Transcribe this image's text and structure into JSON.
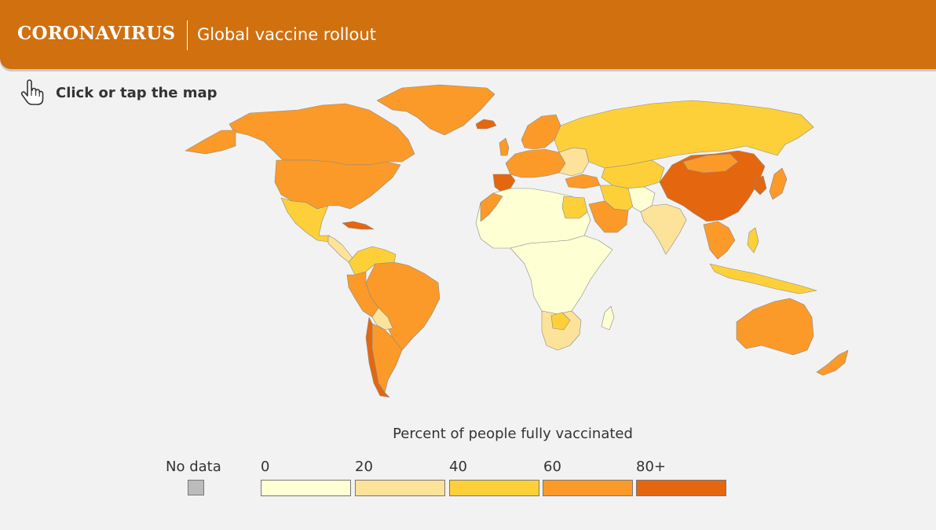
{
  "header": {
    "kicker": "CORONAVIRUS",
    "title": "Global vaccine rollout"
  },
  "hint": {
    "text": "Click or tap the map",
    "icon": "pointing-hand-icon"
  },
  "map": {
    "metric": "Percent of people fully vaccinated",
    "colors": {
      "no_data": "#bbbbbb",
      "0-20": "#ffffd4",
      "20-40": "#fde29a",
      "40-60": "#fdd03a",
      "60-80": "#fb9a29",
      "80+": "#e4670f"
    }
  },
  "legend": {
    "title": "Percent of people fully vaccinated",
    "no_data_label": "No data",
    "ticks": [
      "0",
      "20",
      "40",
      "60",
      "80+"
    ],
    "bins": [
      {
        "label": "0–20",
        "color": "#ffffd4"
      },
      {
        "label": "20–40",
        "color": "#fde29a"
      },
      {
        "label": "40–60",
        "color": "#fdd03a"
      },
      {
        "label": "60–80",
        "color": "#fb9a29"
      },
      {
        "label": "80+",
        "color": "#e4670f"
      }
    ]
  }
}
